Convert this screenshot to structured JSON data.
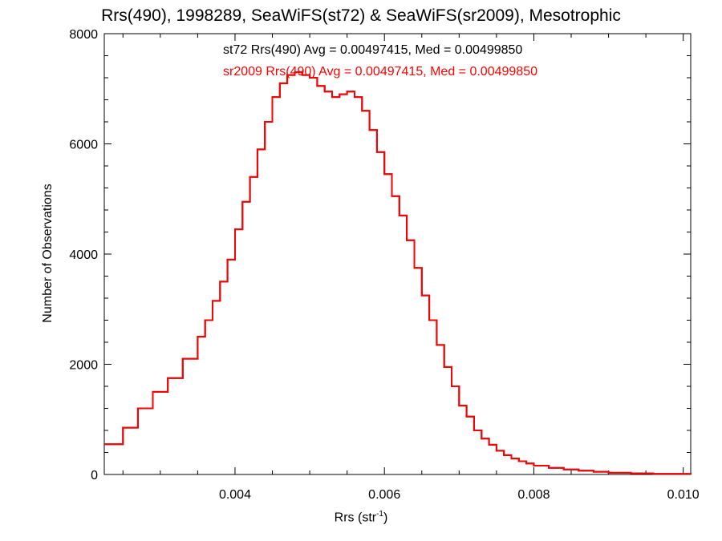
{
  "chart_data": {
    "type": "histogram",
    "title": "Rrs(490), 1998289, SeaWiFS(st72) & SeaWiFS(sr2009), Mesotrophic",
    "xlabel_main": "Rrs (str",
    "xlabel_exp": "-1",
    "xlabel_close": ")",
    "ylabel": "Number of Observations",
    "xlim": [
      0.00225,
      0.0101
    ],
    "ylim": [
      0,
      8000
    ],
    "x_ticks": [
      0.004,
      0.006,
      0.008,
      0.01
    ],
    "x_tick_labels": [
      "0.004",
      "0.006",
      "0.008",
      "0.010"
    ],
    "y_ticks": [
      0,
      2000,
      4000,
      6000,
      8000
    ],
    "y_tick_labels": [
      "0",
      "2000",
      "4000",
      "6000",
      "8000"
    ],
    "annotations": [
      {
        "text": "st72 Rrs(490) Avg = 0.00497415, Med = 0.00499850",
        "color": "#000000"
      },
      {
        "text": "sr2009 Rrs(490) Avg = 0.00497415, Med = 0.00499850",
        "color": "#ff0000"
      }
    ],
    "series": [
      {
        "name": "st72",
        "color": "#000000",
        "x": [
          0.00225,
          0.0025,
          0.0027,
          0.0029,
          0.0031,
          0.0033,
          0.0035,
          0.0036,
          0.0037,
          0.0038,
          0.0039,
          0.004,
          0.0041,
          0.0042,
          0.0043,
          0.0044,
          0.0045,
          0.0046,
          0.0047,
          0.0048,
          0.0049,
          0.005,
          0.0051,
          0.0052,
          0.0053,
          0.0054,
          0.0055,
          0.0056,
          0.0057,
          0.0058,
          0.0059,
          0.006,
          0.0061,
          0.0062,
          0.0063,
          0.0064,
          0.0065,
          0.0066,
          0.0067,
          0.0068,
          0.0069,
          0.007,
          0.0071,
          0.0072,
          0.0073,
          0.0074,
          0.0075,
          0.0076,
          0.0077,
          0.0078,
          0.0079,
          0.008,
          0.0082,
          0.0084,
          0.0086,
          0.0088,
          0.009,
          0.0093,
          0.0096,
          0.0101
        ],
        "values": [
          550,
          850,
          1200,
          1500,
          1750,
          2100,
          2500,
          2800,
          3150,
          3500,
          3900,
          4450,
          4950,
          5400,
          5900,
          6400,
          6850,
          7100,
          7250,
          7300,
          7250,
          7200,
          7050,
          6950,
          6850,
          6900,
          6950,
          6850,
          6600,
          6250,
          5850,
          5450,
          5050,
          4700,
          4250,
          3750,
          3250,
          2800,
          2350,
          1950,
          1600,
          1250,
          1050,
          800,
          650,
          540,
          430,
          350,
          290,
          240,
          200,
          160,
          120,
          90,
          70,
          50,
          30,
          20,
          10,
          5
        ]
      },
      {
        "name": "sr2009",
        "color": "#ff0000",
        "x": [
          0.00225,
          0.0025,
          0.0027,
          0.0029,
          0.0031,
          0.0033,
          0.0035,
          0.0036,
          0.0037,
          0.0038,
          0.0039,
          0.004,
          0.0041,
          0.0042,
          0.0043,
          0.0044,
          0.0045,
          0.0046,
          0.0047,
          0.0048,
          0.0049,
          0.005,
          0.0051,
          0.0052,
          0.0053,
          0.0054,
          0.0055,
          0.0056,
          0.0057,
          0.0058,
          0.0059,
          0.006,
          0.0061,
          0.0062,
          0.0063,
          0.0064,
          0.0065,
          0.0066,
          0.0067,
          0.0068,
          0.0069,
          0.007,
          0.0071,
          0.0072,
          0.0073,
          0.0074,
          0.0075,
          0.0076,
          0.0077,
          0.0078,
          0.0079,
          0.008,
          0.0082,
          0.0084,
          0.0086,
          0.0088,
          0.009,
          0.0093,
          0.0096,
          0.0101
        ],
        "values": [
          550,
          850,
          1200,
          1500,
          1750,
          2100,
          2500,
          2800,
          3150,
          3500,
          3900,
          4450,
          4950,
          5400,
          5900,
          6400,
          6850,
          7100,
          7250,
          7300,
          7250,
          7200,
          7050,
          6950,
          6850,
          6900,
          6950,
          6850,
          6600,
          6250,
          5850,
          5450,
          5050,
          4700,
          4250,
          3750,
          3250,
          2800,
          2350,
          1950,
          1600,
          1250,
          1050,
          800,
          650,
          540,
          430,
          350,
          290,
          240,
          200,
          160,
          120,
          90,
          70,
          50,
          30,
          20,
          10,
          5
        ]
      }
    ]
  }
}
